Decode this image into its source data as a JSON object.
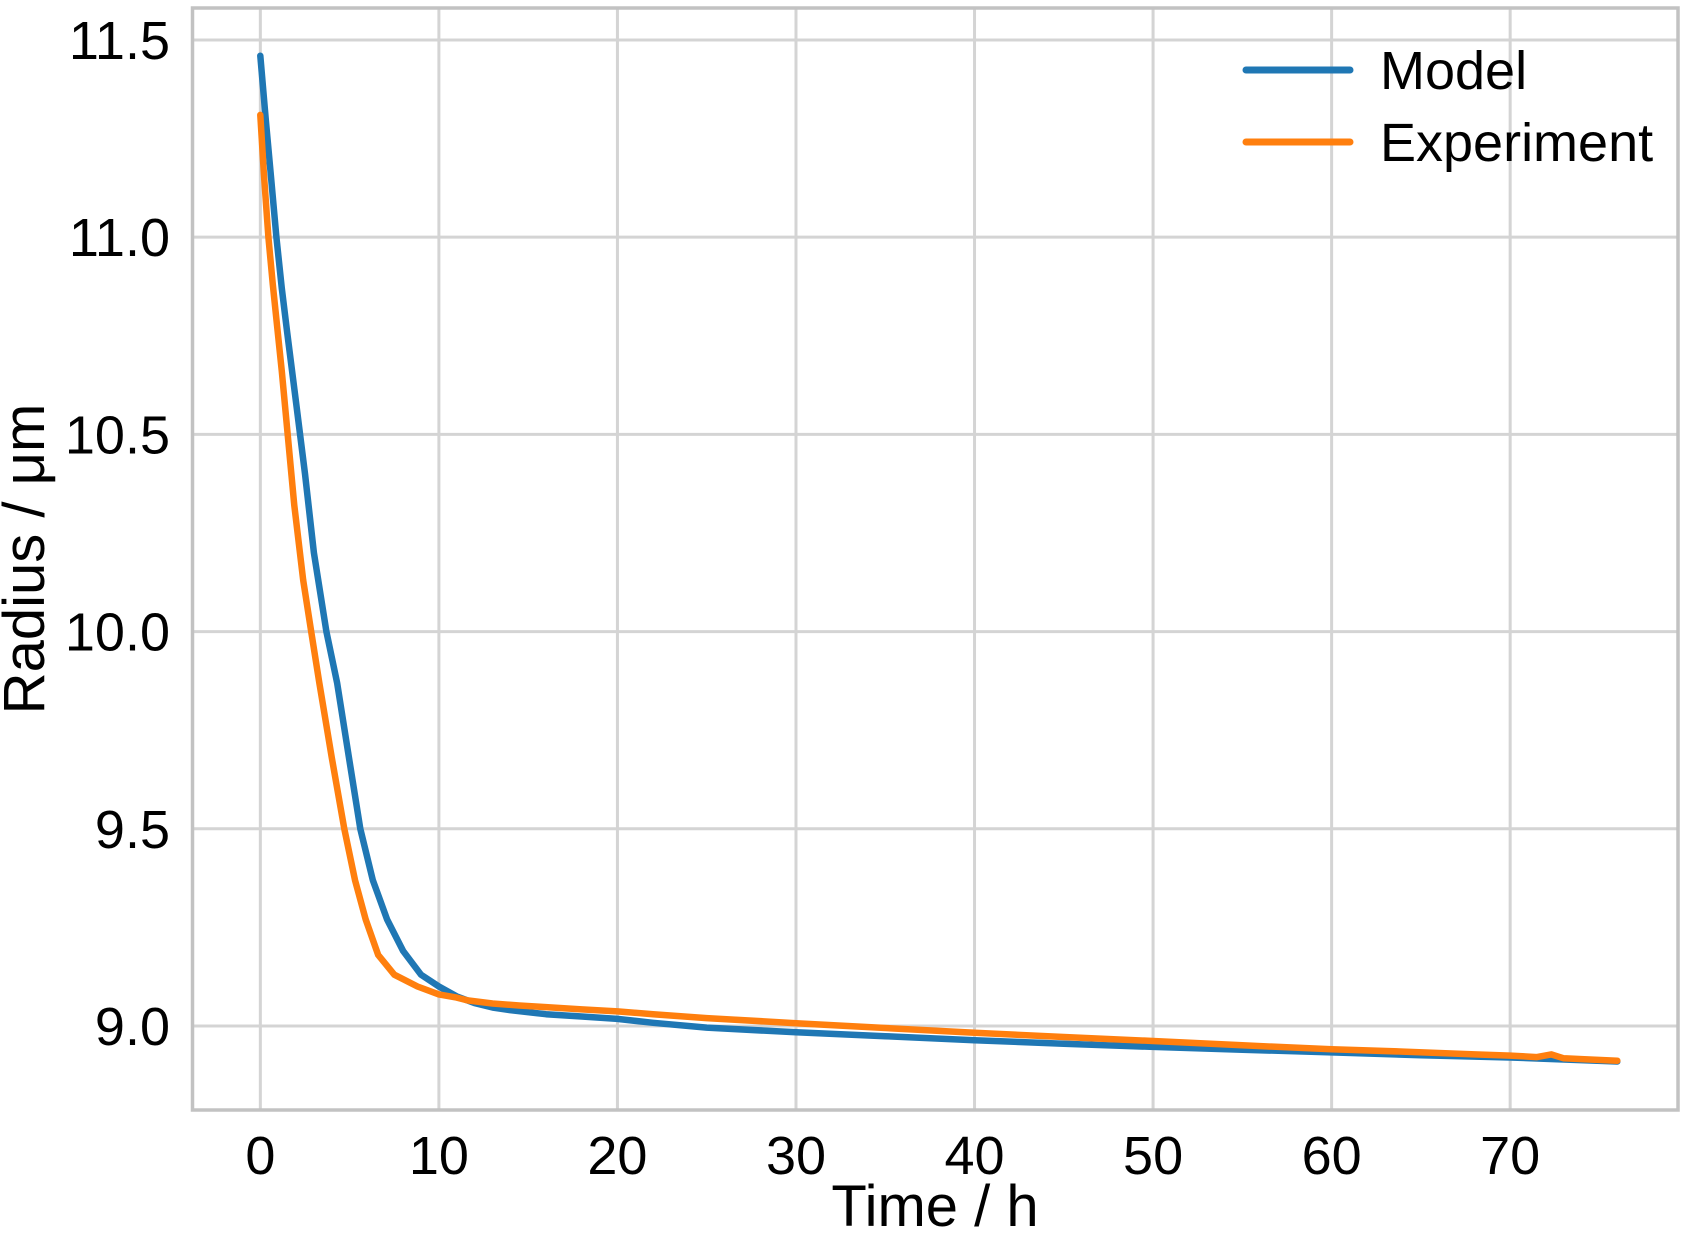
{
  "chart_data": {
    "type": "line",
    "title": "",
    "xlabel": "Time / h",
    "ylabel": "Radius / μm",
    "xlim": [
      -3.8,
      79.4
    ],
    "ylim": [
      8.787,
      11.581
    ],
    "grid": true,
    "legend_position": "upper right",
    "xticks": [
      0,
      10,
      20,
      30,
      40,
      50,
      60,
      70
    ],
    "xtick_labels": [
      "0",
      "10",
      "20",
      "30",
      "40",
      "50",
      "60",
      "70"
    ],
    "yticks": [
      9.0,
      9.5,
      10.0,
      10.5,
      11.0,
      11.5
    ],
    "ytick_labels": [
      "9.0",
      "9.5",
      "10.0",
      "10.5",
      "11.0",
      "11.5"
    ],
    "style": {
      "grid_color": "#d4d4d4",
      "frame_color": "#c2c2c2",
      "text_color": "#000000",
      "background": "#ffffff",
      "line_width": 6.5
    },
    "series": [
      {
        "name": "Model",
        "color": "#1f77b4",
        "x": [
          0,
          0.3,
          0.6,
          0.9,
          1.2,
          1.5,
          2.0,
          2.5,
          3.0,
          3.7,
          4.3,
          5.0,
          5.6,
          6.3,
          7.1,
          8.0,
          9.0,
          10.0,
          11.0,
          12.0,
          13.0,
          14.0,
          16.0,
          18.0,
          20.0,
          22.0,
          25.0,
          30.0,
          35.0,
          40.0,
          45.0,
          50.0,
          55.0,
          60.0,
          65.0,
          70.0,
          73.0,
          76.0
        ],
        "y": [
          11.46,
          11.3,
          11.15,
          11.0,
          10.87,
          10.76,
          10.58,
          10.4,
          10.2,
          10.0,
          9.87,
          9.67,
          9.5,
          9.37,
          9.27,
          9.19,
          9.13,
          9.1,
          9.075,
          9.058,
          9.047,
          9.04,
          9.03,
          9.024,
          9.018,
          9.008,
          8.996,
          8.984,
          8.974,
          8.964,
          8.955,
          8.947,
          8.94,
          8.933,
          8.926,
          8.92,
          8.915,
          8.91
        ]
      },
      {
        "name": "Experiment",
        "color": "#ff7f0e",
        "x": [
          0,
          0.2,
          0.45,
          0.7,
          0.95,
          1.2,
          1.45,
          1.9,
          2.4,
          2.85,
          3.3,
          4.0,
          4.7,
          5.3,
          5.9,
          6.6,
          7.5,
          8.8,
          10.0,
          11.0,
          11.6,
          13.0,
          14.5,
          16.0,
          18.0,
          20.0,
          22.0,
          25.0,
          30.0,
          35.0,
          40.0,
          45.0,
          50.0,
          55.0,
          60.0,
          64.0,
          68.0,
          70.0,
          71.5,
          72.3,
          73.0,
          74.0,
          76.0
        ],
        "y": [
          11.31,
          11.16,
          11.0,
          10.88,
          10.77,
          10.66,
          10.54,
          10.32,
          10.13,
          10.0,
          9.87,
          9.68,
          9.5,
          9.37,
          9.27,
          9.18,
          9.13,
          9.1,
          9.08,
          9.072,
          9.065,
          9.057,
          9.052,
          9.048,
          9.042,
          9.037,
          9.03,
          9.02,
          9.007,
          8.995,
          8.983,
          8.972,
          8.962,
          8.951,
          8.941,
          8.935,
          8.928,
          8.925,
          8.921,
          8.928,
          8.918,
          8.916,
          8.912
        ]
      }
    ]
  }
}
